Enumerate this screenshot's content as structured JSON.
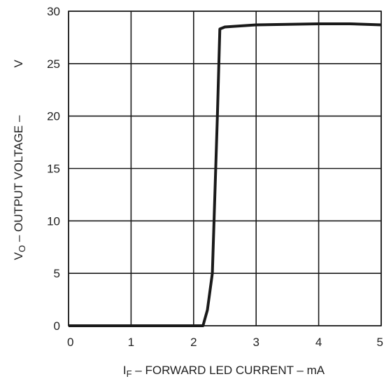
{
  "chart_data": {
    "type": "line",
    "xlabel_main": "I",
    "xlabel_sub": "F",
    "xlabel_rest": " – FORWARD LED CURRENT – mA",
    "ylabel_main": "V",
    "ylabel_sub": "O",
    "ylabel_rest": " – OUTPUT VOLTAGE –",
    "ylabel_unit": "V",
    "xlim": [
      0,
      5
    ],
    "ylim": [
      0,
      30
    ],
    "xticks": [
      0,
      1,
      2,
      3,
      4,
      5
    ],
    "yticks": [
      0,
      5,
      10,
      15,
      20,
      25,
      30
    ],
    "grid": true,
    "series": [
      {
        "x": [
          0,
          1,
          2,
          2.15,
          2.22,
          2.3,
          2.38,
          2.42,
          2.5,
          3,
          3.5,
          4,
          4.5,
          5
        ],
        "y": [
          0,
          0,
          0,
          0,
          1.5,
          5,
          20,
          28.3,
          28.5,
          28.7,
          28.75,
          28.8,
          28.8,
          28.7
        ]
      }
    ]
  }
}
